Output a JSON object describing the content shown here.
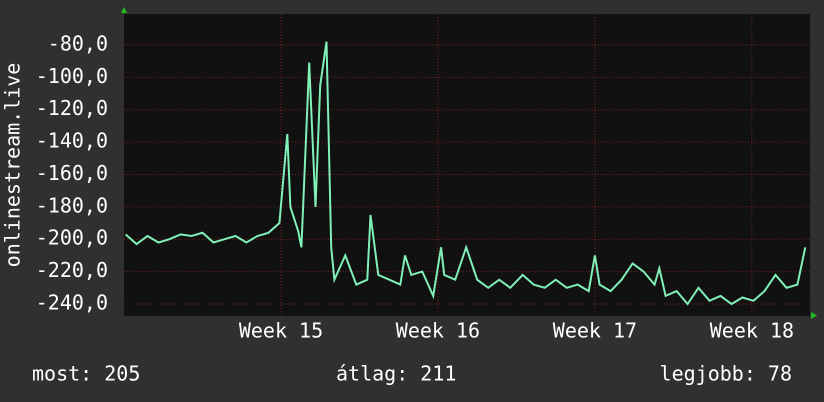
{
  "chart_data": {
    "type": "line",
    "y_label": "onlinestream.live",
    "x": [
      14.01,
      14.08,
      14.15,
      14.22,
      14.29,
      14.36,
      14.43,
      14.5,
      14.57,
      14.64,
      14.71,
      14.78,
      14.85,
      14.92,
      14.99,
      15.04,
      15.06,
      15.11,
      15.13,
      15.18,
      15.22,
      15.25,
      15.29,
      15.32,
      15.34,
      15.41,
      15.48,
      15.55,
      15.57,
      15.62,
      15.69,
      15.76,
      15.79,
      15.83,
      15.9,
      15.97,
      16.02,
      16.04,
      16.11,
      16.18,
      16.25,
      16.32,
      16.39,
      16.46,
      16.54,
      16.61,
      16.68,
      16.75,
      16.82,
      16.89,
      16.96,
      17.0,
      17.03,
      17.1,
      17.17,
      17.24,
      17.31,
      17.38,
      17.41,
      17.45,
      17.52,
      17.59,
      17.66,
      17.73,
      17.8,
      17.87,
      17.94,
      18.01,
      18.08,
      18.15,
      18.22,
      18.29,
      18.34
    ],
    "series": [
      {
        "name": "onlinestream.live",
        "color": "#80f0b8",
        "values": [
          -197,
          -203,
          -198,
          -202,
          -200,
          -197,
          -198,
          -196,
          -202,
          -200,
          -198,
          -202,
          -198,
          -196,
          -190,
          -135,
          -180,
          -195,
          -205,
          -91,
          -180,
          -105,
          -78,
          -205,
          -225,
          -210,
          -228,
          -225,
          -185,
          -222,
          -225,
          -228,
          -210,
          -222,
          -220,
          -235,
          -205,
          -222,
          -225,
          -205,
          -225,
          -230,
          -225,
          -230,
          -222,
          -228,
          -230,
          -225,
          -230,
          -228,
          -232,
          -210,
          -228,
          -232,
          -225,
          -215,
          -220,
          -228,
          -218,
          -235,
          -232,
          -240,
          -230,
          -238,
          -235,
          -240,
          -236,
          -238,
          -232,
          -222,
          -230,
          -228,
          -205
        ]
      }
    ],
    "xlim": [
      14.0,
      18.37
    ],
    "xticks": [
      {
        "value": 15,
        "label": "Week 15"
      },
      {
        "value": 16,
        "label": "Week 16"
      },
      {
        "value": 17,
        "label": "Week 17"
      },
      {
        "value": 18,
        "label": "Week 18"
      }
    ],
    "ylim": [
      -247.4,
      -60.9
    ],
    "yticks": [
      {
        "value": -80,
        "label": "-80,0"
      },
      {
        "value": -100,
        "label": "-100,0"
      },
      {
        "value": -120,
        "label": "-120,0"
      },
      {
        "value": -140,
        "label": "-140,0"
      },
      {
        "value": -160,
        "label": "-160,0"
      },
      {
        "value": -180,
        "label": "-180,0"
      },
      {
        "value": -200,
        "label": "-200,0"
      },
      {
        "value": -220,
        "label": "-220,0"
      },
      {
        "value": -240,
        "label": "-240,0"
      }
    ],
    "grid": true,
    "stats": [
      "most: 205",
      "átlag: 211",
      "legjobb: 78"
    ]
  }
}
